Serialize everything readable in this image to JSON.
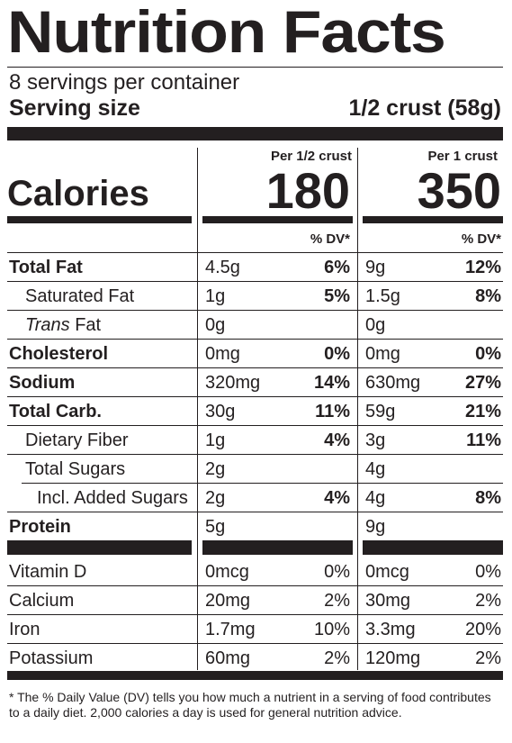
{
  "header": {
    "title": "Nutrition Facts",
    "servings_per_container": "8 servings per container",
    "serving_size_label": "Serving size",
    "serving_size_value": "1/2 crust (58g)"
  },
  "columns": {
    "col1_label": "Per 1/2 crust",
    "col2_label": "Per 1 crust",
    "dv_label": "% DV*"
  },
  "calories": {
    "label": "Calories",
    "col1": "180",
    "col2": "350"
  },
  "nutrients": [
    {
      "name": "Total Fat",
      "c1_amount": "4.5g",
      "c1_dv": "6%",
      "c2_amount": "9g",
      "c2_dv": "12%"
    },
    {
      "name": "Saturated Fat",
      "c1_amount": "1g",
      "c1_dv": "5%",
      "c2_amount": "1.5g",
      "c2_dv": "8%"
    },
    {
      "name_italic": "Trans",
      "name_rest": " Fat",
      "c1_amount": "0g",
      "c1_dv": "",
      "c2_amount": "0g",
      "c2_dv": ""
    },
    {
      "name": "Cholesterol",
      "c1_amount": "0mg",
      "c1_dv": "0%",
      "c2_amount": "0mg",
      "c2_dv": "0%"
    },
    {
      "name": "Sodium",
      "c1_amount": "320mg",
      "c1_dv": "14%",
      "c2_amount": "630mg",
      "c2_dv": "27%"
    },
    {
      "name": "Total Carb.",
      "c1_amount": "30g",
      "c1_dv": "11%",
      "c2_amount": "59g",
      "c2_dv": "21%"
    },
    {
      "name": "Dietary Fiber",
      "c1_amount": "1g",
      "c1_dv": "4%",
      "c2_amount": "3g",
      "c2_dv": "11%"
    },
    {
      "name": "Total Sugars",
      "c1_amount": "2g",
      "c1_dv": "",
      "c2_amount": "4g",
      "c2_dv": ""
    },
    {
      "name": "Incl. Added Sugars",
      "c1_amount": "2g",
      "c1_dv": "4%",
      "c2_amount": "4g",
      "c2_dv": "8%"
    },
    {
      "name": "Protein",
      "c1_amount": "5g",
      "c1_dv": "",
      "c2_amount": "9g",
      "c2_dv": ""
    }
  ],
  "micronutrients": [
    {
      "name": "Vitamin D",
      "c1_amount": "0mcg",
      "c1_dv": "0%",
      "c2_amount": "0mcg",
      "c2_dv": "0%"
    },
    {
      "name": "Calcium",
      "c1_amount": "20mg",
      "c1_dv": "2%",
      "c2_amount": "30mg",
      "c2_dv": "2%"
    },
    {
      "name": "Iron",
      "c1_amount": "1.7mg",
      "c1_dv": "10%",
      "c2_amount": "3.3mg",
      "c2_dv": "20%"
    },
    {
      "name": "Potassium",
      "c1_amount": "60mg",
      "c1_dv": "2%",
      "c2_amount": "120mg",
      "c2_dv": "2%"
    }
  ],
  "footnote": "* The % Daily Value (DV) tells you how much a nutrient in a serving of food contributes to a daily diet. 2,000 calories a day is used for general nutrition advice.",
  "colors": {
    "ink": "#231f20",
    "background": "#ffffff"
  }
}
